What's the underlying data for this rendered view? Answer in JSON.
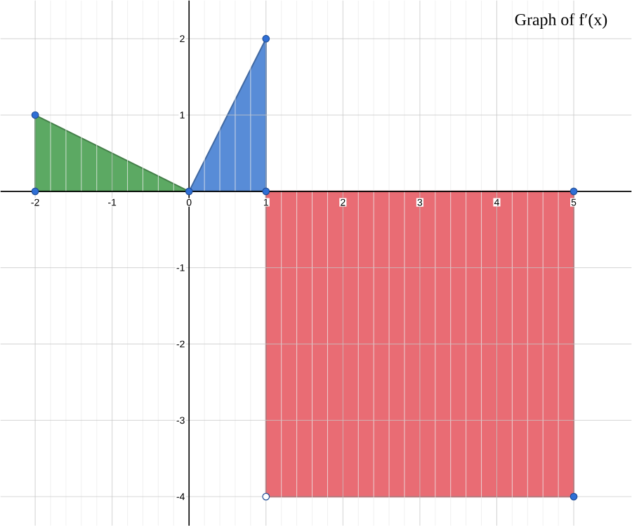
{
  "chart_data": {
    "type": "area",
    "title": "Graph of f′(x)",
    "series": [
      {
        "color": "#5ca963",
        "marker": "none",
        "x": [
          -2,
          -2,
          0
        ],
        "values": [
          0,
          1,
          0
        ]
      },
      {
        "color": "#588cd7",
        "marker": "none",
        "x": [
          0,
          1,
          1
        ],
        "values": [
          0,
          2,
          0
        ]
      },
      {
        "color": "#e96c74",
        "marker": "none",
        "x": [
          1,
          1,
          5,
          5
        ],
        "values": [
          0,
          -4,
          -4,
          0
        ]
      },
      {
        "type": "scatter",
        "color": "#2f6fd6",
        "marker": "circle",
        "x": [
          -2,
          -2,
          0,
          1,
          1,
          5,
          5
        ],
        "values": [
          1,
          0,
          0,
          2,
          0,
          0,
          -4
        ]
      },
      {
        "type": "scatter",
        "color": "#ffffff",
        "marker": "circle",
        "x": [
          1
        ],
        "values": [
          -4
        ]
      }
    ],
    "xlim": [
      -2.45,
      5.75
    ],
    "ylim": [
      -4.38,
      2.5
    ],
    "xticks": [
      -2,
      -1,
      0,
      1,
      2,
      3,
      4,
      5
    ],
    "yticks": [
      -4,
      -3,
      -2,
      -1,
      1,
      2
    ],
    "grid": true
  }
}
